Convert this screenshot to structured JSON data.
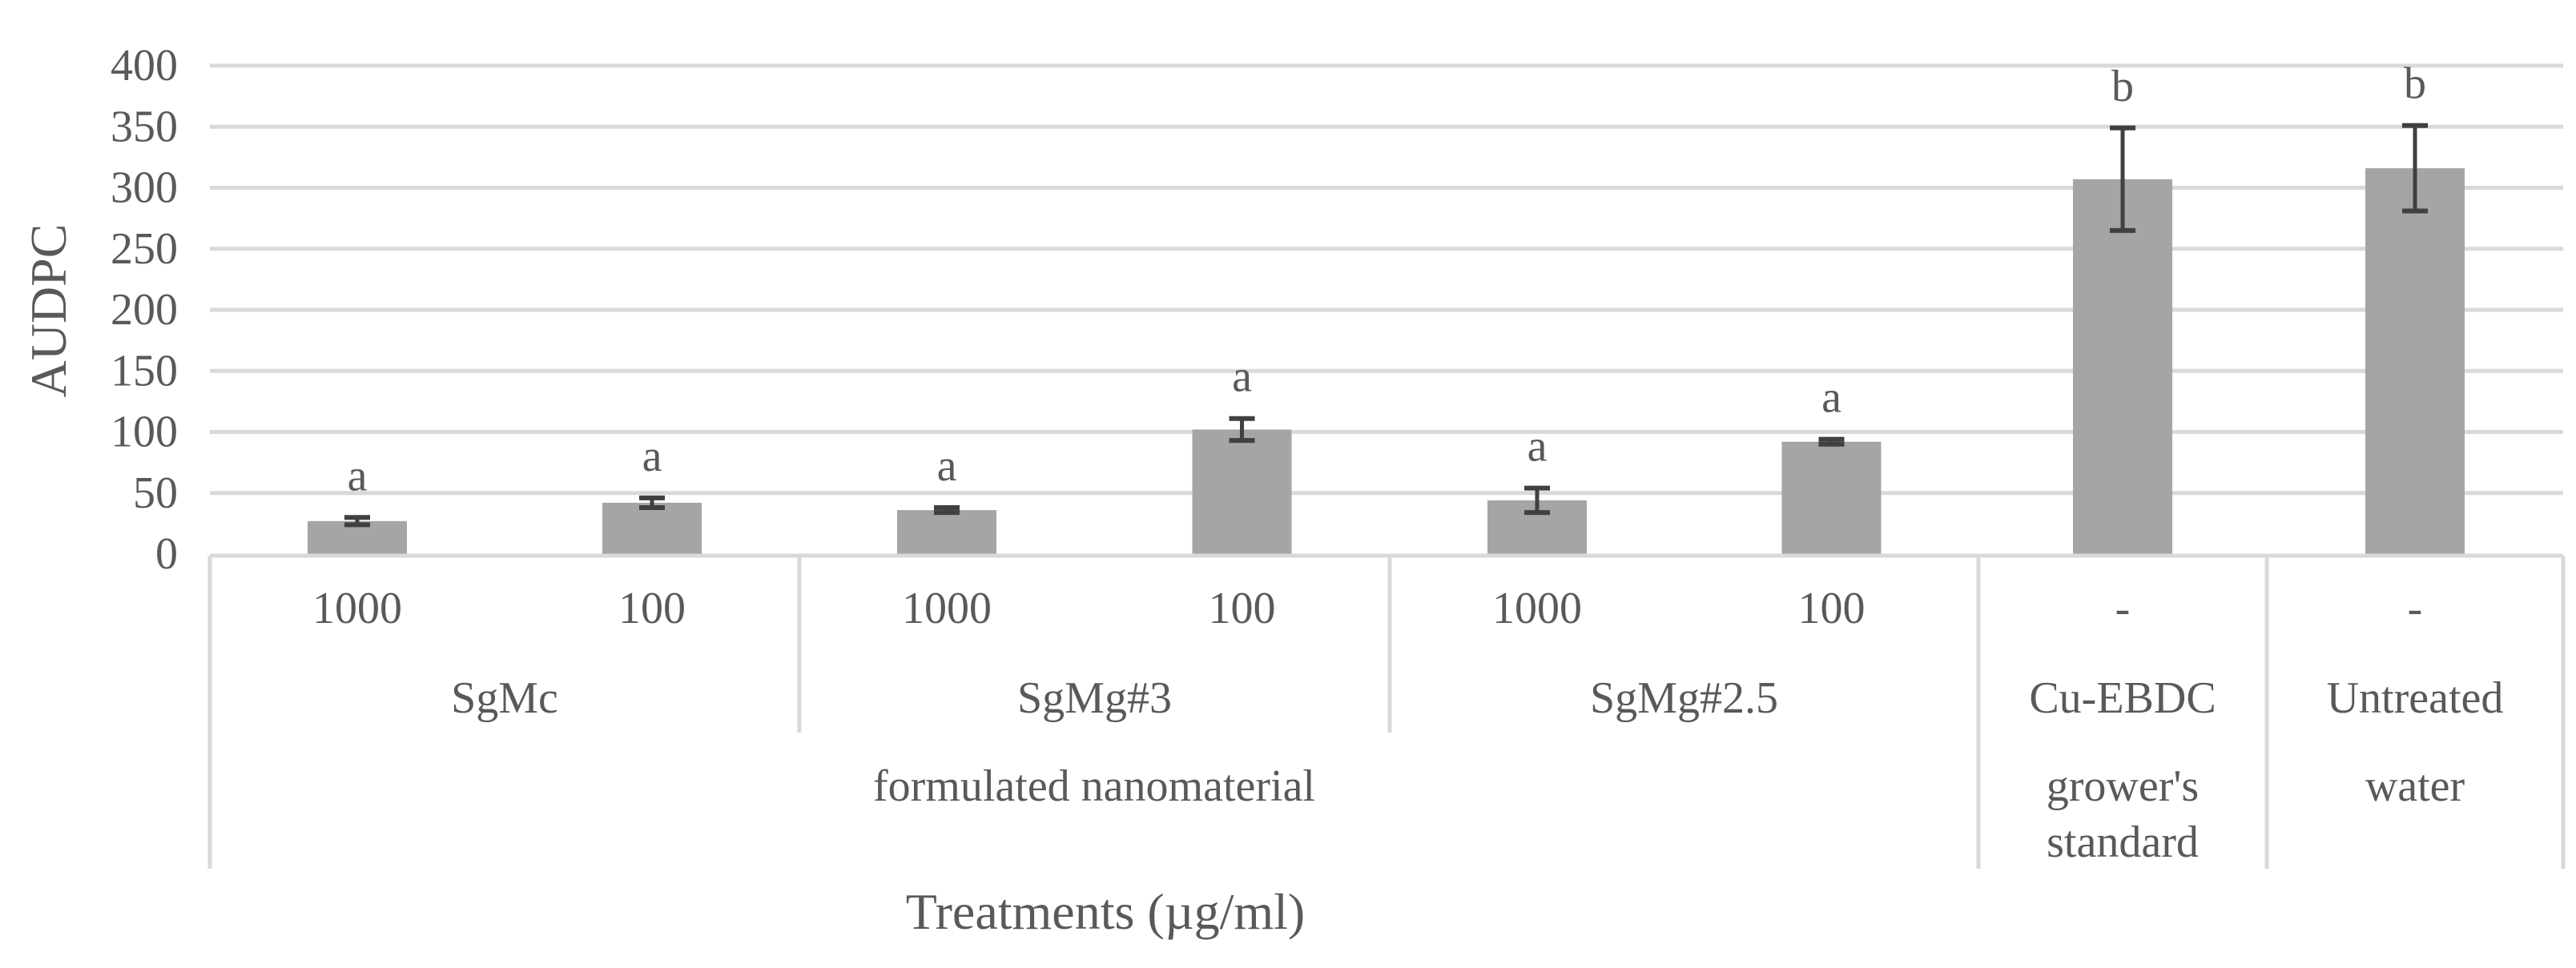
{
  "chart_data": {
    "type": "bar",
    "title": "",
    "ylabel": "AUDPC",
    "xlabel": "Treatments (µg/ml)",
    "ylim": [
      0,
      400
    ],
    "yticks": [
      0,
      50,
      100,
      150,
      200,
      250,
      300,
      350,
      400
    ],
    "grid": true,
    "bar_color": "#a5a5a5",
    "errorbar_color": "#404040",
    "categories": [
      "1000",
      "100",
      "1000",
      "100",
      "1000",
      "100",
      "-",
      "-"
    ],
    "values": [
      27,
      42,
      36,
      102,
      44,
      92,
      307,
      316
    ],
    "errors": [
      3,
      4,
      2,
      9,
      10,
      2,
      42,
      35
    ],
    "significance": [
      "a",
      "a",
      "a",
      "a",
      "a",
      "a",
      "b",
      "b"
    ],
    "groups": [
      {
        "label": "SgMc",
        "count": 2
      },
      {
        "label": "SgMg#3",
        "count": 2
      },
      {
        "label": "SgMg#2.5",
        "count": 2
      },
      {
        "label": "Cu-EBDC",
        "count": 1
      },
      {
        "label": "Untreated",
        "count": 1
      }
    ],
    "supergroups": [
      {
        "lines": [
          "formulated nanomaterial"
        ],
        "count": 6
      },
      {
        "lines": [
          "grower's",
          "standard"
        ],
        "count": 1
      },
      {
        "lines": [
          "water"
        ],
        "count": 1
      }
    ]
  }
}
